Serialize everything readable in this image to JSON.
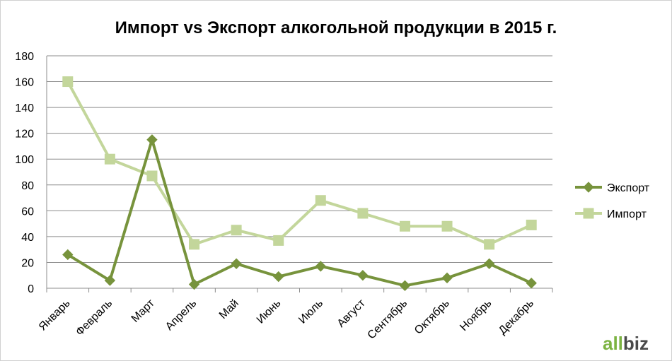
{
  "chart_data": {
    "type": "line",
    "title": "Импорт vs Экспорт алкогольной продукции в 2015 г.",
    "xlabel": "",
    "ylabel": "",
    "categories": [
      "Январь",
      "Февраль",
      "Март",
      "Апрель",
      "Май",
      "Июнь",
      "Июль",
      "Август",
      "Сентябрь",
      "Октябрь",
      "Ноябрь",
      "Декабрь"
    ],
    "ylim": [
      0,
      180
    ],
    "yticks": [
      "0",
      "20",
      "40",
      "60",
      "80",
      "100",
      "120",
      "140",
      "160",
      "180"
    ],
    "grid": true,
    "legend_position": "right",
    "series": [
      {
        "name": "Экспорт",
        "color": "#77933c",
        "marker": "diamond",
        "values": [
          26,
          6,
          115,
          3,
          19,
          9,
          17,
          10,
          2,
          8,
          19,
          4
        ]
      },
      {
        "name": "Импорт",
        "color": "#c3d69b",
        "marker": "square",
        "values": [
          160,
          100,
          87,
          34,
          45,
          37,
          68,
          58,
          48,
          48,
          34,
          49
        ]
      }
    ]
  },
  "logo": {
    "text": "allbiz",
    "colors": {
      "all": "#7cb342",
      "biz": "#4a4a4a"
    }
  }
}
